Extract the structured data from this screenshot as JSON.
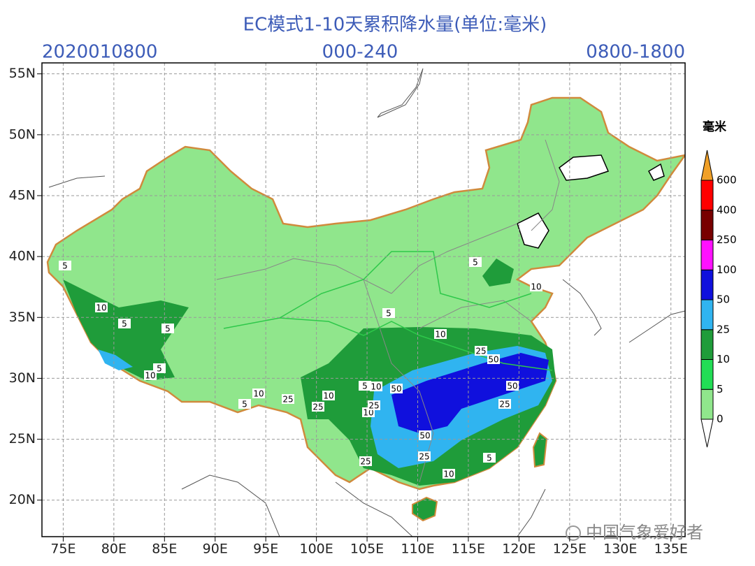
{
  "title": "EC模式1-10天累积降水量(单位:毫米)",
  "header_left": "2020010800",
  "header_center": "000-240",
  "header_right": "0800-1800",
  "map": {
    "lonlim": [
      72.9,
      136.4
    ],
    "latlim": [
      17.0,
      55.9
    ],
    "lonticks": [
      {
        "value": 75,
        "label": "75E"
      },
      {
        "value": 80,
        "label": "80E"
      },
      {
        "value": 85,
        "label": "85E"
      },
      {
        "value": 90,
        "label": "90E"
      },
      {
        "value": 95,
        "label": "95E"
      },
      {
        "value": 100,
        "label": "100E"
      },
      {
        "value": 105,
        "label": "105E"
      },
      {
        "value": 110,
        "label": "110E"
      },
      {
        "value": 115,
        "label": "115E"
      },
      {
        "value": 120,
        "label": "120E"
      },
      {
        "value": 125,
        "label": "125E"
      },
      {
        "value": 130,
        "label": "130E"
      },
      {
        "value": 135,
        "label": "135E"
      }
    ],
    "latticks": [
      {
        "value": 20,
        "label": "20N"
      },
      {
        "value": 25,
        "label": "25N"
      },
      {
        "value": 30,
        "label": "30N"
      },
      {
        "value": 35,
        "label": "35N"
      },
      {
        "value": 40,
        "label": "40N"
      },
      {
        "value": 45,
        "label": "45N"
      },
      {
        "value": 50,
        "label": "50N"
      },
      {
        "value": 55,
        "label": "55N"
      }
    ],
    "grid": true,
    "contour_labels": [
      5,
      10,
      5,
      5,
      5,
      10,
      5,
      10,
      25,
      25,
      10,
      5,
      10,
      50,
      10,
      25,
      50,
      50,
      25,
      50,
      25,
      25,
      10,
      5,
      5,
      10,
      5,
      10,
      25
    ]
  },
  "colorbar": {
    "unit": "毫米",
    "levels": [
      0,
      5,
      10,
      25,
      50,
      100,
      250,
      400,
      600
    ],
    "colors": [
      "#ffffff",
      "#90e68c",
      "#22dd55",
      "#1f9c3a",
      "#30b4f0",
      "#1010dd",
      "#ff10ff",
      "#780000",
      "#ff0000",
      "#f0a028"
    ]
  },
  "watermark": "中国气象爱好者"
}
